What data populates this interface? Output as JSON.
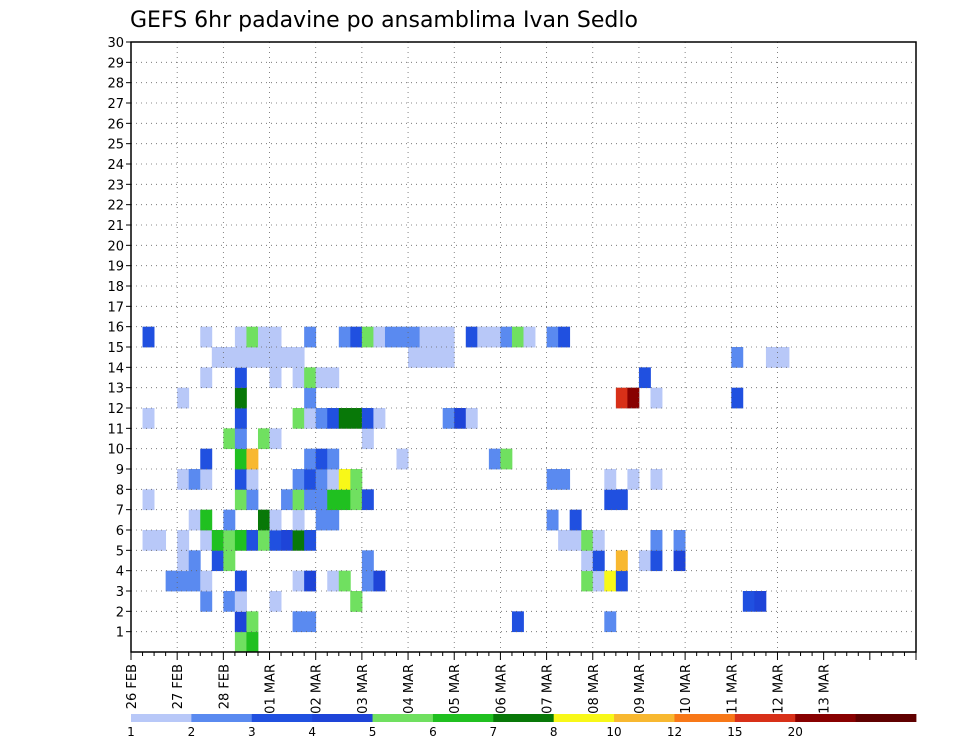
{
  "chart_data": {
    "type": "heatmap",
    "title": "GEFS 6hr padavine po ansamblima Ivan Sedlo",
    "xlabel": "",
    "ylabel": "",
    "x_ticks": [
      "26 FEB",
      "27 FEB",
      "28 FEB",
      "01 MAR",
      "02 MAR",
      "03 MAR",
      "04 MAR",
      "05 MAR",
      "06 MAR",
      "07 MAR",
      "08 MAR",
      "09 MAR",
      "10 MAR",
      "11 MAR",
      "12 MAR",
      "13 MAR"
    ],
    "y_ticks": [
      1,
      2,
      3,
      4,
      5,
      6,
      7,
      8,
      9,
      10,
      11,
      12,
      13,
      14,
      15,
      16,
      17,
      18,
      19,
      20,
      21,
      22,
      23,
      24,
      25,
      26,
      27,
      28,
      29,
      30
    ],
    "ylim": [
      0,
      30
    ],
    "x_steps_per_day": 4,
    "x_steps": 68,
    "grid": true,
    "colorbar": {
      "labels": [
        "1",
        "2",
        "3",
        "4",
        "5",
        "6",
        "7",
        "8",
        "10",
        "12",
        "15",
        "20"
      ],
      "colors": [
        "#b8c8f8",
        "#5a8af0",
        "#2050e0",
        "#1e44d8",
        "#70e060",
        "#20c020",
        "#087808",
        "#f8f818",
        "#f8b830",
        "#f87818",
        "#d83018",
        "#880000",
        "#600000"
      ]
    },
    "cell_value_unit": "precipitation class index 1-13 (6hr)",
    "members": [
      {
        "member": 0,
        "cells": [
          [
            9,
            5
          ],
          [
            10,
            6
          ]
        ]
      },
      {
        "member": 1,
        "cells": [
          [
            9,
            3
          ],
          [
            9,
            4
          ],
          [
            10,
            5
          ],
          [
            14,
            1
          ],
          [
            14,
            2
          ],
          [
            15,
            2
          ],
          [
            33,
            3
          ],
          [
            41,
            2
          ]
        ]
      },
      {
        "member": 2,
        "cells": [
          [
            6,
            2
          ],
          [
            8,
            2
          ],
          [
            9,
            1
          ],
          [
            9,
            1
          ],
          [
            12,
            1
          ],
          [
            19,
            5
          ],
          [
            19,
            5
          ],
          [
            53,
            3
          ],
          [
            54,
            4
          ]
        ]
      },
      {
        "member": 3,
        "cells": [
          [
            3,
            2
          ],
          [
            4,
            2
          ],
          [
            5,
            2
          ],
          [
            6,
            1
          ],
          [
            9,
            3
          ],
          [
            14,
            1
          ],
          [
            15,
            4
          ],
          [
            17,
            1
          ],
          [
            18,
            5
          ],
          [
            20,
            2
          ],
          [
            21,
            4
          ],
          [
            39,
            5
          ],
          [
            40,
            1
          ],
          [
            41,
            8
          ],
          [
            42,
            3
          ]
        ]
      },
      {
        "member": 4,
        "cells": [
          [
            4,
            1
          ],
          [
            5,
            2
          ],
          [
            7,
            3
          ],
          [
            8,
            5
          ],
          [
            20,
            2
          ],
          [
            39,
            1
          ],
          [
            40,
            3
          ],
          [
            42,
            9
          ],
          [
            44,
            1
          ],
          [
            45,
            3
          ],
          [
            47,
            4
          ]
        ]
      },
      {
        "member": 5,
        "cells": [
          [
            1,
            1
          ],
          [
            2,
            1
          ],
          [
            4,
            1
          ],
          [
            6,
            1
          ],
          [
            7,
            6
          ],
          [
            8,
            5
          ],
          [
            9,
            6
          ],
          [
            10,
            3
          ],
          [
            11,
            5
          ],
          [
            12,
            3
          ],
          [
            13,
            4
          ],
          [
            14,
            7
          ],
          [
            15,
            3
          ],
          [
            37,
            1
          ],
          [
            38,
            1
          ],
          [
            39,
            5
          ],
          [
            40,
            1
          ],
          [
            45,
            2
          ],
          [
            47,
            2
          ]
        ]
      },
      {
        "member": 6,
        "cells": [
          [
            5,
            1
          ],
          [
            6,
            6
          ],
          [
            8,
            2
          ],
          [
            11,
            7
          ],
          [
            12,
            1
          ],
          [
            14,
            1
          ],
          [
            16,
            2
          ],
          [
            17,
            2
          ],
          [
            36,
            2
          ],
          [
            38,
            3
          ]
        ]
      },
      {
        "member": 7,
        "cells": [
          [
            1,
            1
          ],
          [
            9,
            5
          ],
          [
            10,
            2
          ],
          [
            13,
            2
          ],
          [
            14,
            5
          ],
          [
            15,
            2
          ],
          [
            16,
            2
          ],
          [
            17,
            6
          ],
          [
            18,
            6
          ],
          [
            19,
            5
          ],
          [
            20,
            3
          ],
          [
            41,
            3
          ],
          [
            42,
            3
          ]
        ]
      },
      {
        "member": 8,
        "cells": [
          [
            4,
            1
          ],
          [
            5,
            2
          ],
          [
            6,
            1
          ],
          [
            9,
            3
          ],
          [
            10,
            1
          ],
          [
            14,
            2
          ],
          [
            15,
            3
          ],
          [
            16,
            2
          ],
          [
            17,
            1
          ],
          [
            18,
            8
          ],
          [
            19,
            5
          ],
          [
            36,
            2
          ],
          [
            37,
            2
          ],
          [
            41,
            1
          ],
          [
            43,
            1
          ],
          [
            45,
            1
          ]
        ]
      },
      {
        "member": 9,
        "cells": [
          [
            6,
            3
          ],
          [
            9,
            6
          ],
          [
            10,
            9
          ],
          [
            15,
            2
          ],
          [
            16,
            3
          ],
          [
            17,
            2
          ],
          [
            23,
            1
          ],
          [
            31,
            2
          ],
          [
            32,
            5
          ]
        ]
      },
      {
        "member": 10,
        "cells": [
          [
            8,
            5
          ],
          [
            9,
            2
          ],
          [
            11,
            5
          ],
          [
            12,
            1
          ],
          [
            20,
            1
          ]
        ]
      },
      {
        "member": 11,
        "cells": [
          [
            1,
            1
          ],
          [
            9,
            3
          ],
          [
            14,
            5
          ],
          [
            15,
            1
          ],
          [
            16,
            2
          ],
          [
            17,
            3
          ],
          [
            18,
            7
          ],
          [
            19,
            7
          ],
          [
            20,
            3
          ],
          [
            21,
            1
          ],
          [
            27,
            2
          ],
          [
            28,
            4
          ],
          [
            29,
            1
          ]
        ]
      },
      {
        "member": 12,
        "cells": [
          [
            4,
            1
          ],
          [
            9,
            7
          ],
          [
            15,
            2
          ],
          [
            42,
            11
          ],
          [
            43,
            12
          ],
          [
            45,
            1
          ],
          [
            52,
            3
          ]
        ]
      },
      {
        "member": 13,
        "cells": [
          [
            6,
            1
          ],
          [
            9,
            3
          ],
          [
            12,
            1
          ],
          [
            14,
            1
          ],
          [
            15,
            5
          ],
          [
            16,
            1
          ],
          [
            17,
            1
          ],
          [
            44,
            3
          ]
        ]
      },
      {
        "member": 14,
        "cells": [
          [
            7,
            1
          ],
          [
            8,
            1
          ],
          [
            9,
            1
          ],
          [
            10,
            1
          ],
          [
            11,
            1
          ],
          [
            12,
            1
          ],
          [
            13,
            1
          ],
          [
            14,
            1
          ],
          [
            24,
            1
          ],
          [
            25,
            1
          ],
          [
            26,
            1
          ],
          [
            27,
            1
          ],
          [
            52,
            2
          ],
          [
            55,
            1
          ],
          [
            56,
            1
          ]
        ]
      },
      {
        "member": 15,
        "cells": [
          [
            1,
            3
          ],
          [
            6,
            1
          ],
          [
            9,
            1
          ],
          [
            10,
            5
          ],
          [
            11,
            1
          ],
          [
            12,
            1
          ],
          [
            15,
            2
          ],
          [
            18,
            2
          ],
          [
            19,
            3
          ],
          [
            20,
            5
          ],
          [
            21,
            1
          ],
          [
            22,
            2
          ],
          [
            23,
            2
          ],
          [
            24,
            2
          ],
          [
            25,
            1
          ],
          [
            26,
            1
          ],
          [
            27,
            1
          ],
          [
            29,
            3
          ],
          [
            30,
            1
          ],
          [
            31,
            1
          ],
          [
            32,
            2
          ],
          [
            33,
            5
          ],
          [
            34,
            1
          ],
          [
            36,
            2
          ],
          [
            37,
            3
          ]
        ]
      }
    ]
  }
}
